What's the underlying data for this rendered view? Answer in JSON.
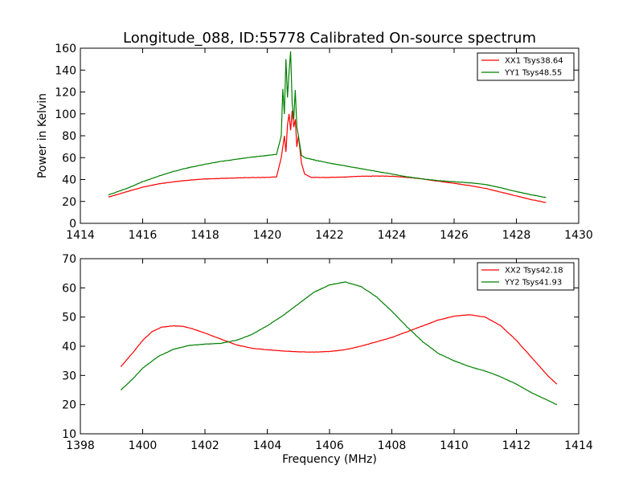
{
  "figure": {
    "title": "Longitude_088, ID:55778 Calibrated On-source spectrum"
  },
  "chart_data": [
    {
      "type": "line",
      "title": "Longitude_088, ID:55778 Calibrated On-source spectrum",
      "xlabel": "",
      "ylabel": "Power in Kelvin",
      "xlim": [
        1414,
        1430
      ],
      "ylim": [
        0,
        160
      ],
      "xticks": [
        1414,
        1416,
        1418,
        1420,
        1422,
        1424,
        1426,
        1428,
        1430
      ],
      "yticks": [
        0,
        20,
        40,
        60,
        80,
        100,
        120,
        140,
        160
      ],
      "grid": false,
      "legend": "top-right",
      "series": [
        {
          "name": "XX1 Tsys38.64",
          "color": "#ff0000",
          "x": [
            1414.9,
            1415.5,
            1416.0,
            1416.5,
            1417.0,
            1417.5,
            1418.0,
            1418.5,
            1419.0,
            1419.5,
            1420.0,
            1420.3,
            1420.45,
            1420.55,
            1420.6,
            1420.65,
            1420.7,
            1420.75,
            1420.8,
            1420.85,
            1420.9,
            1420.95,
            1421.0,
            1421.1,
            1421.2,
            1421.4,
            1422.0,
            1422.5,
            1423.0,
            1423.5,
            1424.0,
            1424.5,
            1425.0,
            1425.5,
            1426.0,
            1426.5,
            1427.0,
            1427.5,
            1428.0,
            1428.5,
            1428.95
          ],
          "y": [
            24,
            29,
            33,
            36,
            38,
            39.5,
            40.5,
            41,
            41.5,
            41.8,
            42,
            42.5,
            60,
            80,
            65,
            90,
            100,
            85,
            103,
            88,
            95,
            70,
            80,
            55,
            45,
            42,
            42,
            42.3,
            43,
            43.2,
            43,
            42,
            40.5,
            38.5,
            36.5,
            34.5,
            32,
            28.5,
            25,
            21.5,
            19
          ]
        },
        {
          "name": "YY1 Tsys48.55",
          "color": "#008000",
          "x": [
            1414.9,
            1415.5,
            1416.0,
            1416.5,
            1417.0,
            1417.5,
            1418.0,
            1418.5,
            1419.0,
            1419.5,
            1420.0,
            1420.3,
            1420.45,
            1420.5,
            1420.55,
            1420.6,
            1420.65,
            1420.7,
            1420.75,
            1420.8,
            1420.85,
            1420.9,
            1420.95,
            1421.0,
            1421.1,
            1421.2,
            1421.5,
            1422.0,
            1422.5,
            1423.0,
            1423.5,
            1424.0,
            1424.5,
            1425.0,
            1425.5,
            1426.0,
            1426.5,
            1427.0,
            1427.5,
            1428.0,
            1428.5,
            1428.95
          ],
          "y": [
            26,
            32,
            38,
            43,
            47.5,
            51,
            54,
            56.5,
            58.5,
            60.5,
            62,
            63,
            80,
            123,
            100,
            150,
            115,
            138,
            157,
            110,
            95,
            122,
            88,
            80,
            62,
            60,
            58,
            55,
            52.5,
            50,
            47.5,
            45,
            42.5,
            40.5,
            39,
            38,
            37,
            35.5,
            32.5,
            29,
            26,
            23.5
          ]
        }
      ]
    },
    {
      "type": "line",
      "title": "",
      "xlabel": "Frequency (MHz)",
      "ylabel": "",
      "xlim": [
        1398,
        1414
      ],
      "ylim": [
        10,
        70
      ],
      "xticks": [
        1398,
        1400,
        1402,
        1404,
        1406,
        1408,
        1410,
        1412,
        1414
      ],
      "yticks": [
        10,
        20,
        30,
        40,
        50,
        60,
        70
      ],
      "grid": false,
      "legend": "top-right",
      "series": [
        {
          "name": "XX2 Tsys42.18",
          "color": "#ff0000",
          "x": [
            1399.3,
            1399.7,
            1400.0,
            1400.3,
            1400.6,
            1401.0,
            1401.3,
            1401.6,
            1402.0,
            1402.5,
            1403.0,
            1403.5,
            1404.0,
            1404.5,
            1405.0,
            1405.5,
            1406.0,
            1406.5,
            1407.0,
            1407.5,
            1408.0,
            1408.5,
            1409.0,
            1409.5,
            1410.0,
            1410.5,
            1411.0,
            1411.5,
            1412.0,
            1412.5,
            1413.0,
            1413.3
          ],
          "y": [
            33,
            38,
            42,
            45,
            46.5,
            47,
            46.8,
            46,
            44.5,
            42.5,
            40.5,
            39.3,
            38.8,
            38.4,
            38.1,
            38,
            38.2,
            38.8,
            40,
            41.5,
            43,
            45,
            47,
            49,
            50.3,
            50.8,
            50,
            47,
            42,
            36,
            30,
            27
          ]
        },
        {
          "name": "YY2 Tsys41.93",
          "color": "#008000",
          "x": [
            1399.3,
            1399.7,
            1400.0,
            1400.5,
            1401.0,
            1401.5,
            1402.0,
            1402.5,
            1403.0,
            1403.5,
            1404.0,
            1404.5,
            1405.0,
            1405.5,
            1406.0,
            1406.5,
            1407.0,
            1407.5,
            1408.0,
            1408.5,
            1409.0,
            1409.5,
            1410.0,
            1410.5,
            1411.0,
            1411.5,
            1412.0,
            1412.5,
            1413.0,
            1413.3
          ],
          "y": [
            25,
            29,
            32.5,
            36.5,
            39,
            40.3,
            40.7,
            41,
            42,
            44,
            47,
            50.5,
            54.5,
            58.5,
            61,
            62,
            60.5,
            57,
            52,
            46.5,
            41.5,
            37.5,
            35,
            33,
            31.5,
            29.5,
            27,
            24,
            21.5,
            20
          ]
        }
      ]
    }
  ]
}
